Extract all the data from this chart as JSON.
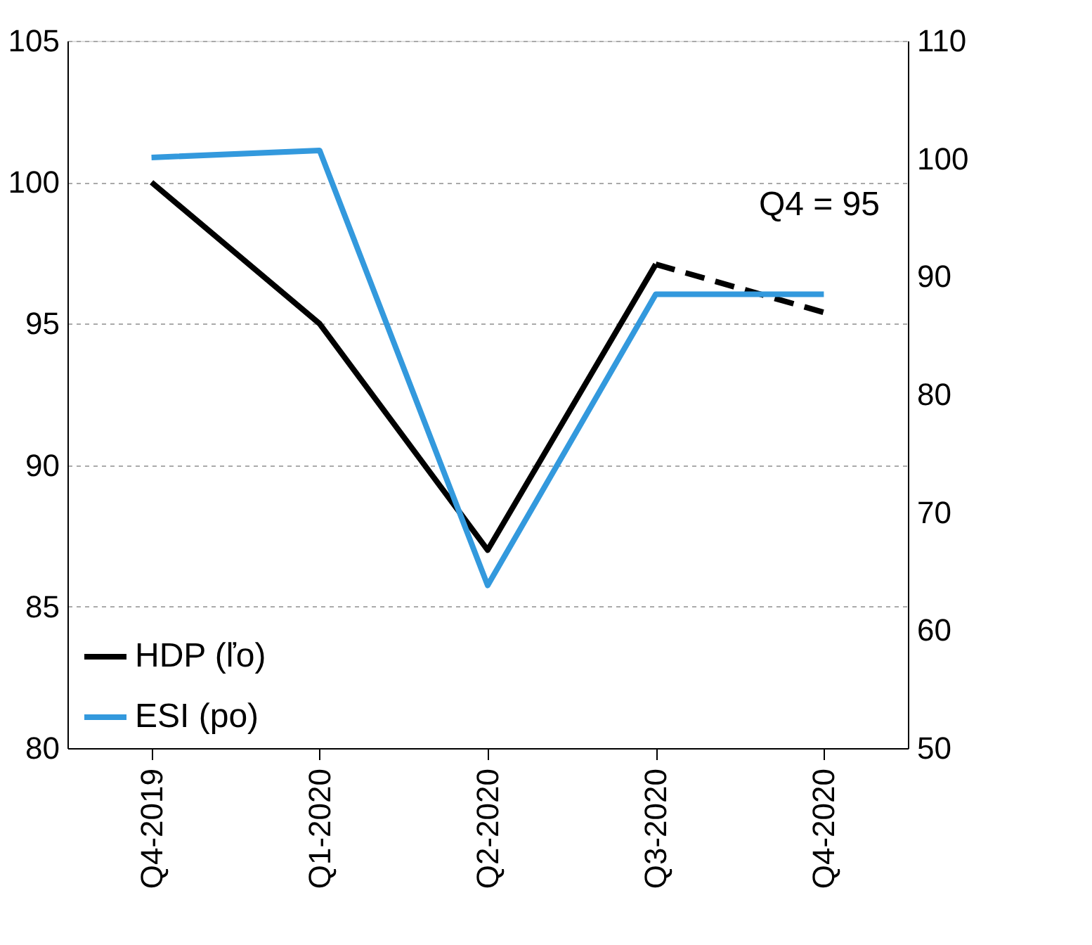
{
  "chart_data": {
    "type": "line",
    "categories": [
      "Q4-2019",
      "Q1-2020",
      "Q2-2020",
      "Q3-2020",
      "Q4-2020"
    ],
    "series": [
      {
        "name": "HDP (ľo)",
        "color": "#000000",
        "values": [
          100,
          95,
          87,
          97.1,
          null
        ],
        "axis": "y",
        "line_style": "solid"
      },
      {
        "color": "#000000",
        "values": [
          null,
          null,
          null,
          97.1,
          95.4
        ],
        "axis": "y",
        "line_style": "dashed"
      },
      {
        "name": "ESI (po)",
        "color": "#3399dd",
        "values": [
          100.1,
          100.7,
          63.8,
          88.5,
          88.5
        ],
        "axis": "y2",
        "line_style": "solid"
      }
    ],
    "ylim": [
      80,
      105
    ],
    "yticks": [
      80,
      85,
      90,
      95,
      100,
      105
    ],
    "y2lim": [
      50,
      110
    ],
    "y2ticks": [
      50,
      60,
      70,
      80,
      90,
      100,
      110
    ],
    "annotations": [
      "Q4 = 95"
    ],
    "grid": "y",
    "legend": "bottom left",
    "marker": "none"
  }
}
